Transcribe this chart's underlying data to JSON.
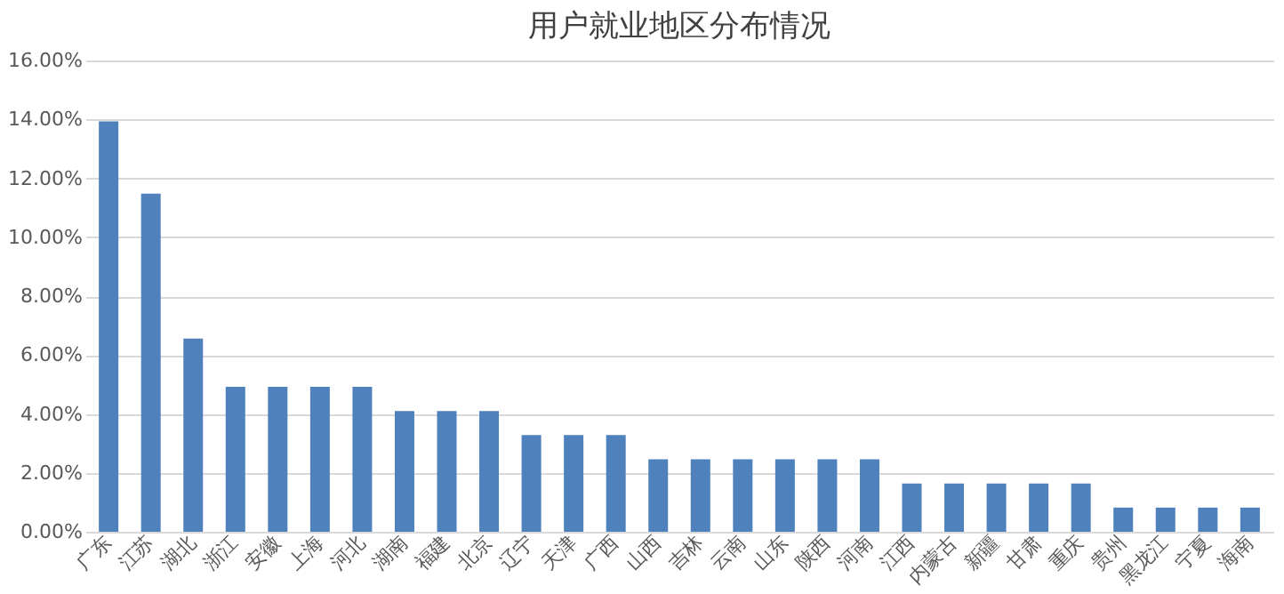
{
  "chart_data": {
    "type": "bar",
    "title": "用户就业地区分布情况",
    "categories": [
      "广东",
      "江苏",
      "湖北",
      "浙江",
      "安徽",
      "上海",
      "河北",
      "湖南",
      "福建",
      "北京",
      "辽宁",
      "天津",
      "广西",
      "山西",
      "吉林",
      "云南",
      "山东",
      "陕西",
      "河南",
      "江西",
      "内蒙古",
      "新疆",
      "甘肃",
      "重庆",
      "贵州",
      "黑龙江",
      "宁夏",
      "海南"
    ],
    "values": [
      13.93,
      11.48,
      6.56,
      4.92,
      4.92,
      4.92,
      4.92,
      4.1,
      4.1,
      4.1,
      3.28,
      3.28,
      3.28,
      2.46,
      2.46,
      2.46,
      2.46,
      2.46,
      2.46,
      1.64,
      1.64,
      1.64,
      1.64,
      1.64,
      0.82,
      0.82,
      0.82,
      0.82
    ],
    "color": "#4f81bd",
    "ylim": [
      0,
      16
    ],
    "yticks": [
      {
        "value": 0,
        "label": "0.00%"
      },
      {
        "value": 2,
        "label": "2.00%"
      },
      {
        "value": 4,
        "label": "4.00%"
      },
      {
        "value": 6,
        "label": "6.00%"
      },
      {
        "value": 8,
        "label": "8.00%"
      },
      {
        "value": 10,
        "label": "10.00%"
      },
      {
        "value": 12,
        "label": "12.00%"
      },
      {
        "value": 14,
        "label": "14.00%"
      },
      {
        "value": 16,
        "label": "16.00%"
      }
    ],
    "grid": "y"
  }
}
